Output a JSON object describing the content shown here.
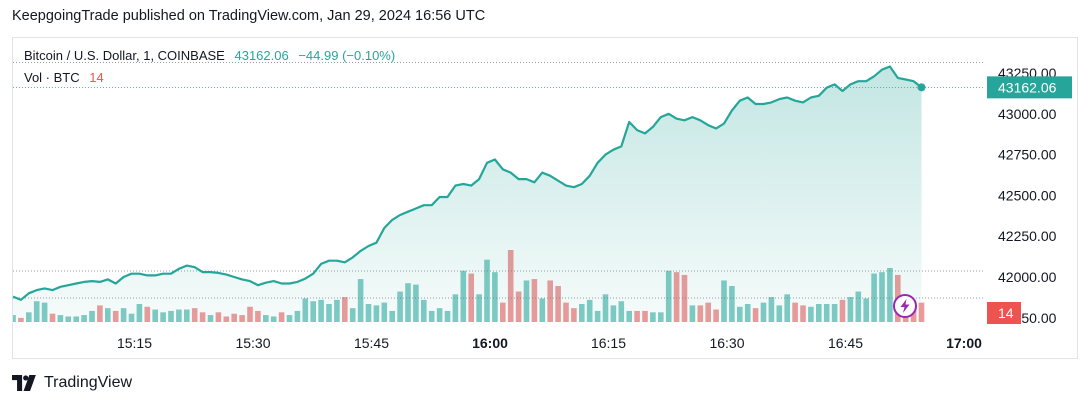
{
  "header": {
    "publish_text": "KeepgoingTrade published on TradingView.com, Jan 29, 2024 16:56 UTC"
  },
  "legend": {
    "symbol": "Bitcoin / U.S. Dollar, 1, COINBASE",
    "last_price": "43162.06",
    "change": "−44.99 (−0.10%)",
    "vol_label": "Vol · BTC",
    "vol_value": "14"
  },
  "price_badge": "43162.06",
  "volume_badge": "14",
  "footer": {
    "brand": "TradingView"
  },
  "colors": {
    "up": "#26a69a",
    "down": "#ef5350",
    "line": "#26a69a",
    "area_fill": "#26a69a",
    "up_volume": "#80cbc4",
    "down_volume": "#ef9a9a",
    "lightning": "#9c27b0"
  },
  "chart_data": {
    "type": "area",
    "title": "Bitcoin / U.S. Dollar, 1, COINBASE",
    "x_ticks": [
      "15:15",
      "15:30",
      "15:45",
      "16:00",
      "16:15",
      "16:30",
      "16:45",
      "17:00"
    ],
    "bold_x_ticks": [
      "16:00",
      "17:00"
    ],
    "y_ticks": [
      "43250.00",
      "43000.00",
      "42750.00",
      "42500.00",
      "42250.00",
      "42000.00",
      "41750.00"
    ],
    "ylim": [
      41740,
      43330
    ],
    "x_minutes_range": [
      0,
      117
    ],
    "series": [
      {
        "name": "Bitcoin / U.S. Dollar",
        "x_minutes": [
          0,
          1,
          2,
          3,
          4,
          5,
          6,
          7,
          8,
          9,
          10,
          11,
          12,
          13,
          14,
          15,
          16,
          17,
          18,
          19,
          20,
          21,
          22,
          23,
          24,
          25,
          26,
          27,
          28,
          29,
          30,
          31,
          32,
          33,
          34,
          35,
          36,
          37,
          38,
          39,
          40,
          41,
          42,
          43,
          44,
          45,
          46,
          47,
          48,
          49,
          50,
          51,
          52,
          53,
          54,
          55,
          56,
          57,
          58,
          59,
          60,
          61,
          62,
          63,
          64,
          65,
          66,
          67,
          68,
          69,
          70,
          71,
          72,
          73,
          74,
          75,
          76,
          77,
          78,
          79,
          80,
          81,
          82,
          83,
          84,
          85,
          86,
          87,
          88,
          89,
          90,
          91,
          92,
          93,
          94,
          95,
          96,
          97,
          98,
          99,
          100,
          101,
          102,
          103,
          104,
          105,
          106,
          107,
          108,
          109,
          110,
          111,
          112,
          113,
          114,
          115
        ],
        "values": [
          41880,
          41860,
          41900,
          41920,
          41930,
          41920,
          41940,
          41950,
          41960,
          41970,
          41975,
          41970,
          41985,
          41960,
          42000,
          42020,
          42020,
          42010,
          42010,
          42020,
          42020,
          42050,
          42070,
          42060,
          42030,
          42030,
          42025,
          42015,
          42000,
          41985,
          41975,
          41950,
          41965,
          41975,
          41960,
          41960,
          41970,
          41990,
          42020,
          42080,
          42100,
          42100,
          42090,
          42120,
          42160,
          42190,
          42210,
          42300,
          42350,
          42380,
          42400,
          42420,
          42440,
          42440,
          42490,
          42490,
          42560,
          42570,
          42560,
          42600,
          42700,
          42720,
          42660,
          42640,
          42600,
          42600,
          42580,
          42640,
          42620,
          42590,
          42560,
          42550,
          42570,
          42620,
          42700,
          42750,
          42780,
          42800,
          42950,
          42900,
          42880,
          42920,
          42980,
          43000,
          42970,
          42960,
          42980,
          42960,
          42930,
          42910,
          42940,
          43020,
          43080,
          43100,
          43060,
          43060,
          43070,
          43090,
          43100,
          43080,
          43070,
          43100,
          43110,
          43160,
          43180,
          43140,
          43180,
          43200,
          43200,
          43230,
          43270,
          43290,
          43220,
          43210,
          43200,
          43162.06
        ]
      },
      {
        "name": "Vol · BTC",
        "x_minutes": [
          0,
          1,
          2,
          3,
          4,
          5,
          6,
          7,
          8,
          9,
          10,
          11,
          12,
          13,
          14,
          15,
          16,
          17,
          18,
          19,
          20,
          21,
          22,
          23,
          24,
          25,
          26,
          27,
          28,
          29,
          30,
          31,
          32,
          33,
          34,
          35,
          36,
          37,
          38,
          39,
          40,
          41,
          42,
          43,
          44,
          45,
          46,
          47,
          48,
          49,
          50,
          51,
          52,
          53,
          54,
          55,
          56,
          57,
          58,
          59,
          60,
          61,
          62,
          63,
          64,
          65,
          66,
          67,
          68,
          69,
          70,
          71,
          72,
          73,
          74,
          75,
          76,
          77,
          78,
          79,
          80,
          81,
          82,
          83,
          84,
          85,
          86,
          87,
          88,
          89,
          90,
          91,
          92,
          93,
          94,
          95,
          96,
          97,
          98,
          99,
          100,
          101,
          102,
          103,
          104,
          105,
          106,
          107,
          108,
          109,
          110,
          111,
          112,
          113,
          114,
          115
        ],
        "values": [
          5,
          3,
          7,
          15,
          14,
          6,
          5,
          4,
          4,
          5,
          8,
          12,
          10,
          8,
          10,
          6,
          13,
          11,
          9,
          7,
          8,
          9,
          9,
          10,
          7,
          5,
          7,
          4,
          6,
          5,
          11,
          8,
          5,
          4,
          7,
          5,
          8,
          17,
          15,
          16,
          13,
          16,
          18,
          10,
          31,
          13,
          12,
          14,
          8,
          22,
          28,
          27,
          16,
          8,
          10,
          8,
          20,
          37,
          35,
          20,
          45,
          36,
          14,
          52,
          22,
          30,
          31,
          17,
          30,
          26,
          14,
          10,
          13,
          16,
          8,
          20,
          12,
          15,
          8,
          8,
          8,
          7,
          7,
          37,
          36,
          34,
          12,
          12,
          14,
          9,
          30,
          26,
          11,
          13,
          10,
          14,
          18,
          12,
          20,
          14,
          12,
          11,
          13,
          13,
          13,
          16,
          18,
          22,
          17,
          35,
          36,
          39,
          34,
          11,
          10,
          14
        ]
      }
    ]
  }
}
